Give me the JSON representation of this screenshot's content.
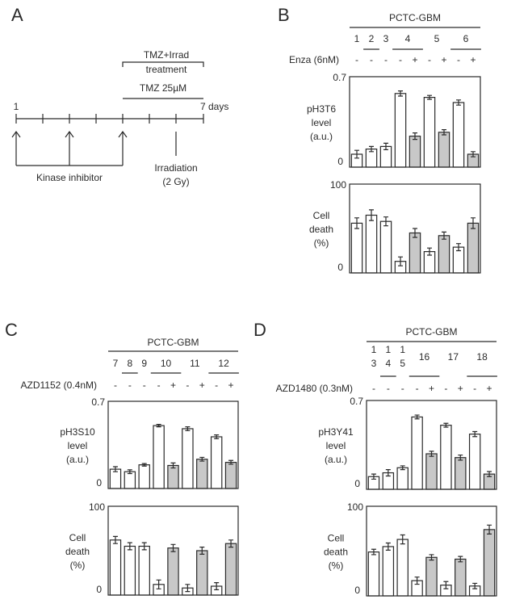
{
  "panel_a": {
    "letter": "A",
    "start_label": "1",
    "end_label": "7 days",
    "bracket_label_1": "TMZ+Irrad",
    "bracket_label_2": "treatment",
    "tmz_label": "TMZ 25µM",
    "kinase_label": "Kinase inhibitor",
    "irradiation_label_1": "Irradiation",
    "irradiation_label_2": "(2 Gy)"
  },
  "colors": {
    "open_bar": "#ffffff",
    "treated_bar": "#c8c8c8",
    "line": "#2a2a2a"
  },
  "chart_data": [
    {
      "panel": "B",
      "type": "bar",
      "header": "PCTC-GBM",
      "groups": [
        {
          "label": "1",
          "bars": 1,
          "underlined": false
        },
        {
          "label": "2",
          "bars": 1,
          "underlined": true
        },
        {
          "label": "3",
          "bars": 1,
          "underlined": false
        },
        {
          "label": "4",
          "bars": 2,
          "underlined": true
        },
        {
          "label": "5",
          "bars": 2,
          "underlined": false
        },
        {
          "label": "6",
          "bars": 2,
          "underlined": true
        }
      ],
      "treatment_label": "Enza (6nM)",
      "treatment": [
        "-",
        "-",
        "-",
        "-",
        "+",
        "-",
        "+",
        "-",
        "+"
      ],
      "top": {
        "ylabel": [
          "pH3T6",
          "level",
          "(a.u.)"
        ],
        "yticks": [
          "0.7",
          "0"
        ],
        "ylim": [
          0,
          0.7
        ],
        "values": [
          0.1,
          0.14,
          0.16,
          0.57,
          0.24,
          0.54,
          0.27,
          0.5,
          0.1
        ],
        "errors": [
          0.03,
          0.02,
          0.025,
          0.02,
          0.025,
          0.015,
          0.02,
          0.02,
          0.02
        ]
      },
      "bottom": {
        "ylabel": [
          "Cell",
          "death",
          "(%)"
        ],
        "yticks": [
          "100",
          "0"
        ],
        "ylim": [
          0,
          100
        ],
        "values": [
          56,
          65,
          58,
          13,
          45,
          24,
          42,
          29,
          56
        ],
        "errors": [
          6,
          6,
          5,
          5,
          5,
          4,
          4,
          4,
          6
        ]
      }
    },
    {
      "panel": "C",
      "type": "bar",
      "header": "PCTC-GBM",
      "groups": [
        {
          "label": "7",
          "bars": 1,
          "underlined": false
        },
        {
          "label": "8",
          "bars": 1,
          "underlined": true
        },
        {
          "label": "9",
          "bars": 1,
          "underlined": false
        },
        {
          "label": "10",
          "bars": 2,
          "underlined": true
        },
        {
          "label": "11",
          "bars": 2,
          "underlined": false
        },
        {
          "label": "12",
          "bars": 2,
          "underlined": true
        }
      ],
      "treatment_label": "AZD1152 (0.4nM)",
      "treatment": [
        "-",
        "-",
        "-",
        "-",
        "+",
        "-",
        "+",
        "-",
        "+"
      ],
      "top": {
        "ylabel": [
          "pH3S10",
          "level",
          "(a.u.)"
        ],
        "yticks": [
          "0.7",
          "0"
        ],
        "ylim": [
          0,
          0.7
        ],
        "values": [
          0.155,
          0.135,
          0.19,
          0.505,
          0.185,
          0.48,
          0.235,
          0.415,
          0.21
        ],
        "errors": [
          0.02,
          0.015,
          0.01,
          0.01,
          0.02,
          0.015,
          0.015,
          0.015,
          0.015
        ]
      },
      "bottom": {
        "ylabel": [
          "Cell",
          "death",
          "(%)"
        ],
        "yticks": [
          "100",
          "0"
        ],
        "ylim": [
          0,
          100
        ],
        "values": [
          62,
          55,
          55,
          12,
          53,
          8,
          50,
          10,
          58
        ],
        "errors": [
          4,
          4,
          4,
          5,
          4,
          4,
          4,
          4,
          4
        ]
      }
    },
    {
      "panel": "D",
      "type": "bar",
      "header": "PCTC-GBM",
      "groups": [
        {
          "label": "13",
          "bars": 1,
          "underlined": false
        },
        {
          "label": "14",
          "bars": 1,
          "underlined": true
        },
        {
          "label": "15",
          "bars": 1,
          "underlined": false
        },
        {
          "label": "16",
          "bars": 2,
          "underlined": true
        },
        {
          "label": "17",
          "bars": 2,
          "underlined": false
        },
        {
          "label": "18",
          "bars": 2,
          "underlined": true
        }
      ],
      "treatment_label": "AZD1480 (0.3nM)",
      "treatment": [
        "-",
        "-",
        "-",
        "-",
        "+",
        "-",
        "+",
        "-",
        "+"
      ],
      "top": {
        "ylabel": [
          "pH3Y41",
          "level",
          "(a.u.)"
        ],
        "yticks": [
          "0.7",
          "0"
        ],
        "ylim": [
          0,
          0.7
        ],
        "values": [
          0.1,
          0.13,
          0.17,
          0.57,
          0.28,
          0.505,
          0.25,
          0.435,
          0.12
        ],
        "errors": [
          0.02,
          0.025,
          0.015,
          0.015,
          0.02,
          0.015,
          0.02,
          0.02,
          0.02
        ]
      },
      "bottom": {
        "ylabel": [
          "Cell",
          "death",
          "(%)"
        ],
        "yticks": [
          "100",
          "0"
        ],
        "ylim": [
          0,
          100
        ],
        "values": [
          49,
          55,
          63,
          17,
          43,
          12,
          41,
          11,
          74
        ],
        "errors": [
          3,
          4,
          5,
          4,
          3,
          4,
          3,
          3,
          5
        ]
      }
    }
  ]
}
